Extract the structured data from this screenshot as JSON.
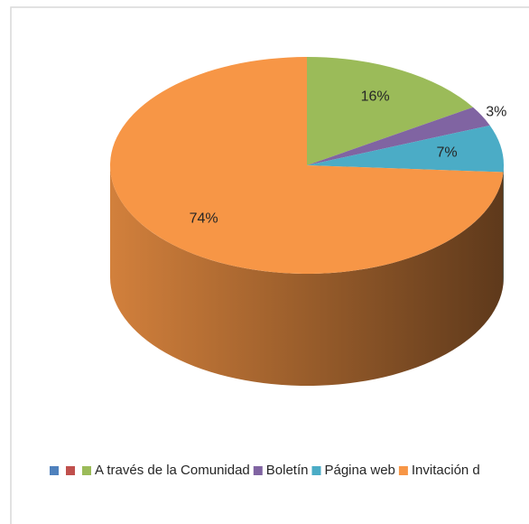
{
  "chart_data": {
    "type": "pie",
    "categories": [
      null,
      null,
      "A través de la Comunidad",
      "Boletín",
      "Página web",
      "Invitación d"
    ],
    "values": [
      null,
      null,
      16,
      3,
      7,
      74
    ],
    "value_labels": [
      null,
      null,
      "16%",
      "3%",
      "7%",
      "74%"
    ],
    "colors": [
      "#4f81bd",
      "#c0504d",
      "#9bbb59",
      "#8064a2",
      "#4bacc6",
      "#f79646"
    ],
    "legend": "bottom"
  }
}
